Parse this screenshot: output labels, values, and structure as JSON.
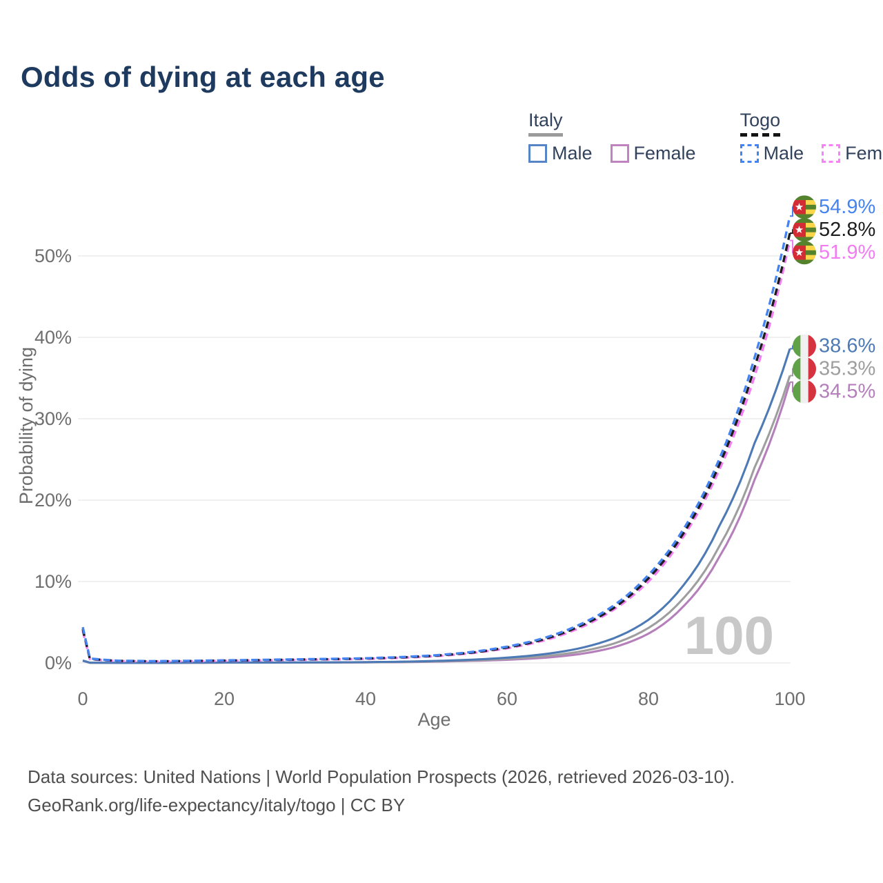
{
  "title": "Odds of dying at each age",
  "legend": {
    "italy": {
      "label": "Italy",
      "male": "Male",
      "female": "Female"
    },
    "togo": {
      "label": "Togo",
      "male": "Male",
      "female": "Female"
    }
  },
  "watermark": "100",
  "footer": {
    "line1": "Data sources: United Nations | World Population Prospects (2026, retrieved 2026-03-10).",
    "line2": "GeoRank.org/life-expectancy/italy/togo | CC BY"
  },
  "chart_data": {
    "type": "line",
    "title": "Odds of dying at each age",
    "xlabel": "Age",
    "ylabel": "Probability of dying",
    "xlim": [
      0,
      100
    ],
    "ylim_pct": [
      0,
      56
    ],
    "x_ticks": [
      0,
      20,
      40,
      60,
      80,
      100
    ],
    "y_ticks_pct": [
      0,
      10,
      20,
      30,
      40,
      50
    ],
    "y_tick_labels": [
      "0%",
      "10%",
      "20%",
      "30%",
      "40%",
      "50%"
    ],
    "grid": "horizontal",
    "legend_position": "top-right",
    "flag_colors": {
      "togo": {
        "green": "#55822c",
        "yellow": "#fbd64b",
        "red": "#d42c35",
        "star": "#ffffff"
      },
      "italy": {
        "green": "#61a148",
        "white": "#f0f0f0",
        "red": "#d5333f"
      }
    },
    "series": [
      {
        "id": "italy_female",
        "country": "italy",
        "sex": "female",
        "line": "solid",
        "color": "#b57fbb",
        "end_label": "34.5%",
        "flag": "italy",
        "points": [
          [
            0,
            0.25
          ],
          [
            1,
            0.02
          ],
          [
            5,
            0.01
          ],
          [
            10,
            0.01
          ],
          [
            15,
            0.02
          ],
          [
            20,
            0.03
          ],
          [
            25,
            0.03
          ],
          [
            30,
            0.04
          ],
          [
            35,
            0.05
          ],
          [
            40,
            0.07
          ],
          [
            45,
            0.1
          ],
          [
            50,
            0.16
          ],
          [
            55,
            0.25
          ],
          [
            60,
            0.39
          ],
          [
            65,
            0.62
          ],
          [
            70,
            1.05
          ],
          [
            75,
            1.9
          ],
          [
            80,
            3.6
          ],
          [
            85,
            7.0
          ],
          [
            90,
            13.0
          ],
          [
            95,
            22.5
          ],
          [
            100,
            34.5
          ]
        ]
      },
      {
        "id": "italy_both",
        "country": "italy",
        "sex": "both",
        "line": "solid",
        "color": "#9e9e9e",
        "end_label": "35.3%",
        "flag": "italy",
        "points": [
          [
            0,
            0.27
          ],
          [
            1,
            0.02
          ],
          [
            5,
            0.01
          ],
          [
            10,
            0.01
          ],
          [
            15,
            0.02
          ],
          [
            20,
            0.04
          ],
          [
            25,
            0.04
          ],
          [
            30,
            0.05
          ],
          [
            35,
            0.06
          ],
          [
            40,
            0.08
          ],
          [
            45,
            0.12
          ],
          [
            50,
            0.2
          ],
          [
            55,
            0.31
          ],
          [
            60,
            0.5
          ],
          [
            65,
            0.8
          ],
          [
            70,
            1.35
          ],
          [
            75,
            2.35
          ],
          [
            80,
            4.3
          ],
          [
            85,
            8.0
          ],
          [
            90,
            14.3
          ],
          [
            95,
            24.0
          ],
          [
            100,
            35.3
          ]
        ]
      },
      {
        "id": "italy_male",
        "country": "italy",
        "sex": "male",
        "line": "solid",
        "color": "#4d7ab5",
        "end_label": "38.6%",
        "flag": "italy",
        "points": [
          [
            0,
            0.3
          ],
          [
            1,
            0.03
          ],
          [
            5,
            0.01
          ],
          [
            10,
            0.01
          ],
          [
            15,
            0.03
          ],
          [
            20,
            0.05
          ],
          [
            25,
            0.05
          ],
          [
            30,
            0.06
          ],
          [
            35,
            0.07
          ],
          [
            40,
            0.1
          ],
          [
            45,
            0.15
          ],
          [
            50,
            0.25
          ],
          [
            55,
            0.4
          ],
          [
            60,
            0.65
          ],
          [
            65,
            1.05
          ],
          [
            70,
            1.75
          ],
          [
            75,
            3.0
          ],
          [
            80,
            5.3
          ],
          [
            85,
            9.6
          ],
          [
            90,
            16.8
          ],
          [
            95,
            27.0
          ],
          [
            100,
            38.6
          ]
        ]
      },
      {
        "id": "togo_female",
        "country": "togo",
        "sex": "female",
        "line": "dashed",
        "color": "#f27cf2",
        "end_label": "51.9%",
        "flag": "togo",
        "points": [
          [
            0,
            3.9
          ],
          [
            1,
            0.46
          ],
          [
            5,
            0.24
          ],
          [
            10,
            0.18
          ],
          [
            15,
            0.21
          ],
          [
            20,
            0.26
          ],
          [
            25,
            0.31
          ],
          [
            30,
            0.37
          ],
          [
            35,
            0.43
          ],
          [
            40,
            0.5
          ],
          [
            45,
            0.63
          ],
          [
            50,
            0.84
          ],
          [
            55,
            1.2
          ],
          [
            60,
            1.8
          ],
          [
            65,
            2.7
          ],
          [
            70,
            4.2
          ],
          [
            75,
            6.5
          ],
          [
            80,
            10.0
          ],
          [
            85,
            15.6
          ],
          [
            90,
            23.7
          ],
          [
            95,
            35.2
          ],
          [
            100,
            51.9
          ]
        ]
      },
      {
        "id": "togo_both",
        "country": "togo",
        "sex": "both",
        "line": "dashed",
        "color": "#1d1d1d",
        "end_label": "52.8%",
        "flag": "togo",
        "points": [
          [
            0,
            4.15
          ],
          [
            1,
            0.5
          ],
          [
            5,
            0.26
          ],
          [
            10,
            0.2
          ],
          [
            15,
            0.24
          ],
          [
            20,
            0.29
          ],
          [
            25,
            0.35
          ],
          [
            30,
            0.41
          ],
          [
            35,
            0.47
          ],
          [
            40,
            0.54
          ],
          [
            45,
            0.68
          ],
          [
            50,
            0.9
          ],
          [
            55,
            1.27
          ],
          [
            60,
            1.9
          ],
          [
            65,
            2.85
          ],
          [
            70,
            4.4
          ],
          [
            75,
            6.7
          ],
          [
            80,
            10.4
          ],
          [
            85,
            16.0
          ],
          [
            90,
            24.3
          ],
          [
            95,
            36.3
          ],
          [
            100,
            52.8
          ]
        ]
      },
      {
        "id": "togo_male",
        "country": "togo",
        "sex": "male",
        "line": "dashed",
        "color": "#4584f0",
        "end_label": "54.9%",
        "flag": "togo",
        "points": [
          [
            0,
            4.4
          ],
          [
            1,
            0.55
          ],
          [
            5,
            0.28
          ],
          [
            10,
            0.22
          ],
          [
            15,
            0.26
          ],
          [
            20,
            0.32
          ],
          [
            25,
            0.38
          ],
          [
            30,
            0.44
          ],
          [
            35,
            0.5
          ],
          [
            40,
            0.58
          ],
          [
            45,
            0.72
          ],
          [
            50,
            0.95
          ],
          [
            55,
            1.35
          ],
          [
            60,
            2.0
          ],
          [
            65,
            3.0
          ],
          [
            70,
            4.6
          ],
          [
            75,
            7.0
          ],
          [
            80,
            10.8
          ],
          [
            85,
            16.5
          ],
          [
            90,
            25.0
          ],
          [
            95,
            37.5
          ],
          [
            100,
            54.9
          ]
        ]
      }
    ]
  }
}
